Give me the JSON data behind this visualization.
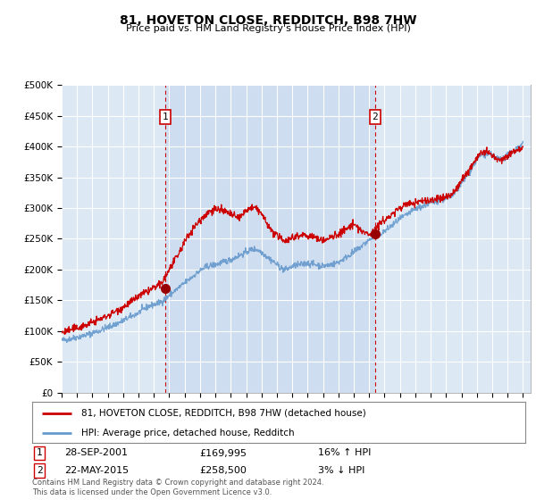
{
  "title": "81, HOVETON CLOSE, REDDITCH, B98 7HW",
  "subtitle": "Price paid vs. HM Land Registry's House Price Index (HPI)",
  "legend_line1": "81, HOVETON CLOSE, REDDITCH, B98 7HW (detached house)",
  "legend_line2": "HPI: Average price, detached house, Redditch",
  "sale1_date": "28-SEP-2001",
  "sale1_price": "£169,995",
  "sale1_hpi": "16% ↑ HPI",
  "sale1_year": 2001.75,
  "sale1_value": 169995,
  "sale2_date": "22-MAY-2015",
  "sale2_price": "£258,500",
  "sale2_hpi": "3% ↓ HPI",
  "sale2_year": 2015.38,
  "sale2_value": 258500,
  "footer": "Contains HM Land Registry data © Crown copyright and database right 2024.\nThis data is licensed under the Open Government Licence v3.0.",
  "plot_bg_color": "#dce9f5",
  "red_color": "#cc0000",
  "blue_color": "#6699cc",
  "ylim": [
    0,
    500000
  ],
  "xlim_start": 1995,
  "xlim_end": 2025.5,
  "hpi_years": [
    1995,
    1995.5,
    1996,
    1996.5,
    1997,
    1997.5,
    1998,
    1998.5,
    1999,
    1999.5,
    2000,
    2000.5,
    2001,
    2001.5,
    2002,
    2002.5,
    2003,
    2003.5,
    2004,
    2004.5,
    2005,
    2005.5,
    2006,
    2006.5,
    2007,
    2007.5,
    2008,
    2008.5,
    2009,
    2009.5,
    2010,
    2010.5,
    2011,
    2011.5,
    2012,
    2012.5,
    2013,
    2013.5,
    2014,
    2014.5,
    2015,
    2015.5,
    2016,
    2016.5,
    2017,
    2017.5,
    2018,
    2018.5,
    2019,
    2019.5,
    2020,
    2020.5,
    2021,
    2021.5,
    2022,
    2022.5,
    2023,
    2023.5,
    2024,
    2024.5,
    2025
  ],
  "hpi_vals": [
    85000,
    87000,
    90000,
    93000,
    97000,
    101000,
    106000,
    111000,
    117000,
    123000,
    130000,
    138000,
    143000,
    148000,
    158000,
    168000,
    178000,
    188000,
    198000,
    205000,
    208000,
    212000,
    216000,
    222000,
    228000,
    233000,
    228000,
    218000,
    208000,
    200000,
    205000,
    208000,
    210000,
    208000,
    206000,
    208000,
    212000,
    220000,
    228000,
    238000,
    248000,
    255000,
    262000,
    272000,
    282000,
    290000,
    298000,
    303000,
    308000,
    312000,
    315000,
    322000,
    340000,
    358000,
    378000,
    388000,
    385000,
    380000,
    385000,
    395000,
    405000
  ],
  "red_years": [
    1995,
    1995.5,
    1996,
    1996.5,
    1997,
    1997.5,
    1998,
    1998.5,
    1999,
    1999.5,
    2000,
    2000.5,
    2001,
    2001.5,
    2002,
    2002.5,
    2003,
    2003.5,
    2004,
    2004.5,
    2005,
    2005.5,
    2006,
    2006.5,
    2007,
    2007.5,
    2008,
    2008.5,
    2009,
    2009.5,
    2010,
    2010.5,
    2011,
    2011.5,
    2012,
    2012.5,
    2013,
    2013.5,
    2014,
    2014.5,
    2015,
    2015.5,
    2016,
    2016.5,
    2017,
    2017.5,
    2018,
    2018.5,
    2019,
    2019.5,
    2020,
    2020.5,
    2021,
    2021.5,
    2022,
    2022.5,
    2023,
    2023.5,
    2024,
    2024.5,
    2025
  ],
  "red_vals": [
    98000,
    101000,
    105000,
    109000,
    114000,
    119000,
    125000,
    132000,
    139000,
    147000,
    156000,
    163000,
    170000,
    178000,
    200000,
    220000,
    245000,
    265000,
    280000,
    292000,
    298000,
    295000,
    290000,
    285000,
    295000,
    300000,
    290000,
    268000,
    255000,
    248000,
    252000,
    256000,
    255000,
    252000,
    248000,
    252000,
    258000,
    265000,
    272000,
    263000,
    258000,
    270000,
    280000,
    290000,
    300000,
    307000,
    308000,
    312000,
    312000,
    315000,
    318000,
    325000,
    345000,
    362000,
    382000,
    390000,
    385000,
    378000,
    385000,
    393000,
    400000
  ]
}
